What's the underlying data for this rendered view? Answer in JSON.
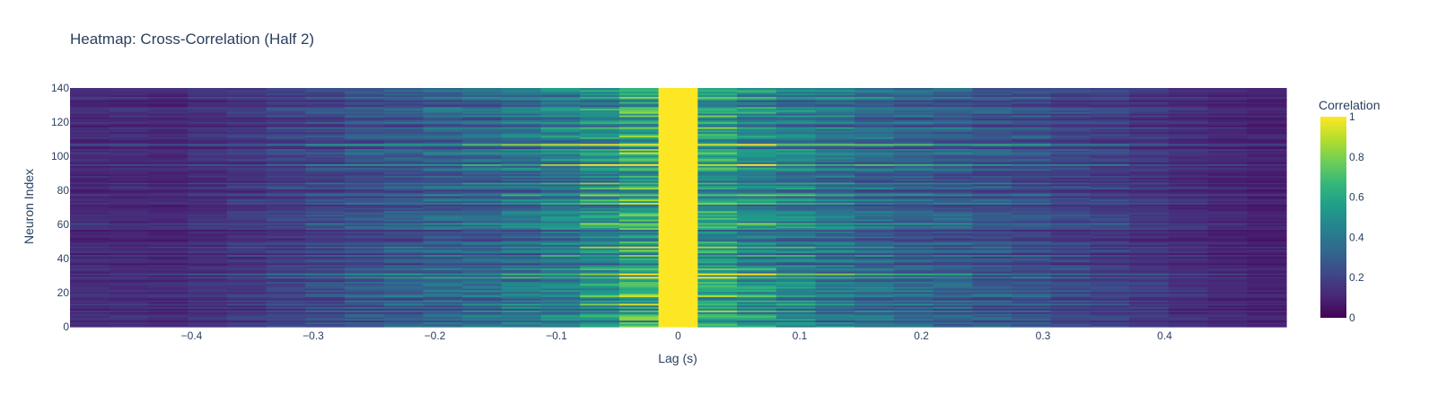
{
  "chart_data": {
    "type": "heatmap",
    "title": "Heatmap: Cross-Correlation (Half 2)",
    "xlabel": "Lag (s)",
    "ylabel": "Neuron Index",
    "colorbar_title": "Correlation",
    "colorscale": "viridis",
    "zlim": [
      0,
      1
    ],
    "xlim": [
      -0.5,
      0.5
    ],
    "ylim": [
      0,
      140
    ],
    "n_lag_bins": 31,
    "n_neurons": 142,
    "lag_bin_width": 0.0323,
    "x_ticks": [
      "−0.4",
      "−0.3",
      "−0.2",
      "−0.1",
      "0",
      "0.1",
      "0.2",
      "0.3",
      "0.4"
    ],
    "x_tick_values": [
      -0.4,
      -0.3,
      -0.2,
      -0.1,
      0,
      0.1,
      0.2,
      0.3,
      0.4
    ],
    "y_ticks": [
      "0",
      "20",
      "40",
      "60",
      "80",
      "100",
      "120",
      "140"
    ],
    "y_tick_values": [
      0,
      20,
      40,
      60,
      80,
      100,
      120,
      140
    ],
    "colorbar_ticks": [
      "0",
      "0.2",
      "0.4",
      "0.6",
      "0.8",
      "1"
    ],
    "colorbar_tick_values": [
      0,
      0.2,
      0.4,
      0.6,
      0.8,
      1
    ],
    "mean_correlation_by_lag": [
      0.12,
      0.12,
      0.11,
      0.14,
      0.16,
      0.19,
      0.22,
      0.25,
      0.28,
      0.31,
      0.33,
      0.37,
      0.42,
      0.49,
      0.58,
      1.0,
      0.55,
      0.47,
      0.42,
      0.38,
      0.34,
      0.31,
      0.29,
      0.26,
      0.24,
      0.21,
      0.19,
      0.16,
      0.13,
      0.11,
      0.09
    ],
    "colors": {
      "viridis": [
        "#440154",
        "#482878",
        "#3e4989",
        "#31688e",
        "#26828e",
        "#1f9e89",
        "#35b779",
        "#6ece58",
        "#b5de2b",
        "#fde725"
      ]
    }
  }
}
